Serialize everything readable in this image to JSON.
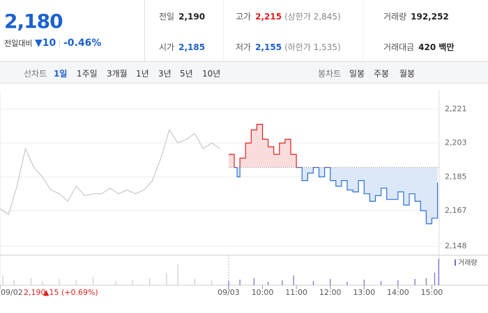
{
  "header": {
    "price": "2,180",
    "change_label": "전일대비",
    "change": "10",
    "change_rate": "-0.46%",
    "stats": [
      [
        "전일",
        "2,190",
        ""
      ],
      [
        "고가",
        "2,215",
        "(상한가 2,845)"
      ],
      [
        "거래량",
        "192,252",
        ""
      ],
      [
        "시가",
        "2,185",
        ""
      ],
      [
        "저가",
        "2,155",
        "(하한가 1,535)"
      ],
      [
        "거래대금",
        "420 백만",
        ""
      ]
    ]
  },
  "tabs": {
    "line_chart": "선차트",
    "periods": [
      "1일",
      "1주일",
      "3개월",
      "1년",
      "3년",
      "5년",
      "10년"
    ],
    "candle_chart": "봉차트",
    "candles": [
      "일봉",
      "주봉",
      "월봉"
    ]
  },
  "chart_data": {
    "type": "line",
    "prev_close": 2190,
    "prev_day_summary": [
      "2,190",
      "▲15 (+0.69%)"
    ],
    "xlim": [
      -405,
      373
    ],
    "ylim": [
      2144,
      2231
    ],
    "xticks": [
      {
        "value": -405,
        "label": "09/02"
      },
      {
        "value": 0,
        "label": "09/03"
      },
      {
        "value": 60,
        "label": "10:00"
      },
      {
        "value": 120,
        "label": "11:00"
      },
      {
        "value": 180,
        "label": "12:00"
      },
      {
        "value": 240,
        "label": "13:00"
      },
      {
        "value": 300,
        "label": "14:00"
      },
      {
        "value": 360,
        "label": "15:00"
      }
    ],
    "yticks": [
      {
        "value": 2221,
        "label": "2,221"
      },
      {
        "value": 2203,
        "label": "2,203"
      },
      {
        "value": 2185,
        "label": "2,185"
      },
      {
        "value": 2167,
        "label": "2,167"
      },
      {
        "value": 2148,
        "label": "2,148"
      }
    ],
    "series": [
      {
        "color": "#c8c8c8",
        "x": [
          -405,
          -390,
          -375,
          -360,
          -345,
          -330,
          -315,
          -300,
          -285,
          -270,
          -255,
          -240,
          -225,
          -210,
          -195,
          -180,
          -165,
          -150,
          -135,
          -120,
          -105,
          -90,
          -75,
          -60,
          -45,
          -30,
          -15
        ],
        "values": [
          2168,
          2165,
          2180,
          2200,
          2190,
          2185,
          2178,
          2176,
          2172,
          2180,
          2175,
          2176,
          2176,
          2179,
          2176,
          2178,
          2176,
          2178,
          2183,
          2195,
          2210,
          2203,
          2205,
          2208,
          2200,
          2203,
          2200
        ]
      },
      {
        "color_up": "#e02020",
        "color_down": "#2a6fd6",
        "x": [
          0,
          10,
          15,
          20,
          30,
          40,
          50,
          60,
          70,
          80,
          90,
          100,
          110,
          120,
          130,
          140,
          150,
          160,
          170,
          180,
          190,
          200,
          210,
          220,
          230,
          240,
          250,
          260,
          270,
          280,
          290,
          300,
          310,
          320,
          330,
          340,
          350,
          360,
          370
        ],
        "values": [
          2197,
          2190,
          2185,
          2195,
          2203,
          2210,
          2213,
          2205,
          2201,
          2197,
          2203,
          2205,
          2197,
          2190,
          2183,
          2187,
          2190,
          2185,
          2190,
          2183,
          2180,
          2183,
          2178,
          2177,
          2183,
          2176,
          2172,
          2175,
          2179,
          2173,
          2173,
          2177,
          2170,
          2176,
          2172,
          2167,
          2160,
          2163,
          2182
        ]
      }
    ],
    "volume": {
      "name": "거래량",
      "color": "#7b68c8",
      "vlim": [
        0,
        40
      ],
      "x": [
        -400,
        -380,
        -350,
        -330,
        -300,
        -270,
        -240,
        -200,
        -170,
        -140,
        -110,
        -90,
        -60,
        -30,
        0,
        20,
        45,
        70,
        95,
        115,
        150,
        180,
        210,
        240,
        270,
        300,
        330,
        350,
        365,
        372
      ],
      "values": [
        14,
        8,
        10,
        6,
        9,
        7,
        12,
        6,
        8,
        10,
        18,
        30,
        9,
        7,
        6,
        8,
        10,
        5,
        7,
        14,
        6,
        9,
        5,
        8,
        6,
        7,
        9,
        10,
        18,
        38
      ]
    }
  }
}
